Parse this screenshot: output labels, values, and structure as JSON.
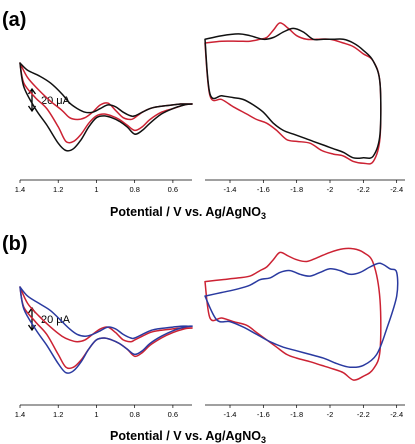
{
  "chart_data": [
    {
      "type": "line",
      "panel_label": "(a)",
      "xlabel": "Potential / V vs. Ag/AgNO",
      "xlabel_sub": "3",
      "scale_bar_label": "20 μA",
      "x_reversed": true,
      "segments": [
        {
          "xlim": [
            1.4,
            0.5
          ],
          "ticks": [
            "1.4",
            "1.2",
            "1",
            "0.8",
            "0.6"
          ],
          "tick_values": [
            1.4,
            1.2,
            1.0,
            0.8,
            0.6
          ]
        },
        {
          "xlim": [
            -1.25,
            -2.45
          ],
          "ticks": [
            "-1.4",
            "-1.6",
            "-1.8",
            "-2",
            "-2.2",
            "-2.4"
          ],
          "tick_values": [
            -1.4,
            -1.6,
            -1.8,
            -2.0,
            -2.2,
            -2.4
          ]
        }
      ],
      "ylim": [
        -45,
        45
      ],
      "series": [
        {
          "color": "#cc2233",
          "loops": [
            {
              "segment": 0,
              "x": [
                1.4,
                1.36,
                1.3,
                1.24,
                1.18,
                1.14,
                1.1,
                1.06,
                1.02,
                0.98,
                0.94,
                0.9,
                0.86,
                0.82,
                0.8,
                0.76,
                0.72,
                0.68,
                0.64,
                0.6,
                0.56,
                0.52,
                0.5,
                0.54,
                0.6,
                0.66,
                0.72,
                0.76,
                0.8,
                0.84,
                0.88,
                0.92,
                0.96,
                1.0,
                1.04,
                1.08,
                1.12,
                1.16,
                1.2,
                1.26,
                1.32,
                1.38,
                1.4
              ],
              "y": [
                17,
                9,
                2,
                -4,
                -9,
                -13,
                -14,
                -13,
                -10,
                -6,
                -5,
                -9,
                -13,
                -14,
                -13,
                -10,
                -8,
                -7,
                -6.5,
                -6,
                -5.5,
                -5.5,
                -5.5,
                -6,
                -8,
                -10,
                -14,
                -18,
                -20,
                -17,
                -14,
                -12,
                -11,
                -12,
                -16,
                -22,
                -26,
                -26,
                -18,
                -8,
                -2,
                6,
                17
              ]
            },
            {
              "segment": 1,
              "x": [
                -1.25,
                -1.35,
                -1.45,
                -1.52,
                -1.58,
                -1.62,
                -1.66,
                -1.7,
                -1.75,
                -1.8,
                -1.86,
                -1.92,
                -2.0,
                -2.08,
                -2.14,
                -2.2,
                -2.26,
                -2.3,
                -2.3,
                -2.26,
                -2.2,
                -2.14,
                -2.08,
                -2.02,
                -1.95,
                -1.88,
                -1.8,
                -1.74,
                -1.68,
                -1.62,
                -1.56,
                -1.5,
                -1.42,
                -1.35,
                -1.28,
                -1.25
              ],
              "y": [
                28,
                29,
                29,
                29,
                30,
                31,
                35,
                39,
                36,
                32,
                30,
                30,
                30,
                28,
                26,
                22,
                18,
                6,
                -24,
                -37,
                -38,
                -37,
                -34,
                -33,
                -31,
                -27,
                -26,
                -25,
                -20,
                -16,
                -14,
                -11,
                -7,
                -3,
                -1,
                28
              ]
            }
          ]
        },
        {
          "color": "#111111",
          "loops": [
            {
              "segment": 0,
              "x": [
                1.4,
                1.36,
                1.3,
                1.24,
                1.18,
                1.14,
                1.1,
                1.06,
                1.02,
                0.98,
                0.94,
                0.9,
                0.86,
                0.82,
                0.8,
                0.76,
                0.72,
                0.68,
                0.64,
                0.6,
                0.56,
                0.52,
                0.5,
                0.54,
                0.6,
                0.66,
                0.72,
                0.76,
                0.8,
                0.84,
                0.88,
                0.92,
                0.96,
                1.0,
                1.04,
                1.08,
                1.12,
                1.16,
                1.2,
                1.26,
                1.32,
                1.38,
                1.4
              ],
              "y": [
                17,
                13,
                10,
                6,
                0,
                -5,
                -8,
                -10,
                -10,
                -8,
                -6,
                -7,
                -10,
                -12,
                -12,
                -10,
                -8,
                -7,
                -6.5,
                -6,
                -5.5,
                -5.5,
                -5.5,
                -6,
                -8,
                -11,
                -16,
                -20,
                -22,
                -18,
                -15,
                -13,
                -12,
                -13,
                -18,
                -25,
                -30,
                -31,
                -27,
                -17,
                -8,
                4,
                17
              ]
            },
            {
              "segment": 1,
              "x": [
                -1.25,
                -1.35,
                -1.45,
                -1.52,
                -1.6,
                -1.66,
                -1.72,
                -1.78,
                -1.84,
                -1.9,
                -1.96,
                -2.02,
                -2.08,
                -2.14,
                -2.2,
                -2.26,
                -2.3,
                -2.3,
                -2.26,
                -2.2,
                -2.14,
                -2.08,
                -2.02,
                -1.96,
                -1.9,
                -1.84,
                -1.78,
                -1.72,
                -1.66,
                -1.6,
                -1.54,
                -1.48,
                -1.42,
                -1.35,
                -1.28,
                -1.25
              ],
              "y": [
                30,
                32,
                33,
                32,
                30,
                31,
                34,
                36,
                34,
                30,
                30,
                30,
                30,
                28,
                24,
                18,
                6,
                -22,
                -34,
                -35,
                -35,
                -32,
                -30,
                -28,
                -26,
                -24,
                -22,
                -20,
                -16,
                -10,
                -6,
                -3,
                -2,
                -1,
                0,
                30
              ]
            }
          ]
        }
      ]
    },
    {
      "type": "line",
      "panel_label": "(b)",
      "xlabel": "Potential / V vs. Ag/AgNO",
      "xlabel_sub": "3",
      "scale_bar_label": "20 μA",
      "x_reversed": true,
      "segments": [
        {
          "xlim": [
            1.4,
            0.5
          ],
          "ticks": [
            "1.4",
            "1.2",
            "1",
            "0.8",
            "0.6"
          ],
          "tick_values": [
            1.4,
            1.2,
            1.0,
            0.8,
            0.6
          ]
        },
        {
          "xlim": [
            -1.25,
            -2.45
          ],
          "ticks": [
            "-1.4",
            "-1.6",
            "-1.8",
            "-2",
            "-2.2",
            "-2.4"
          ],
          "tick_values": [
            -1.4,
            -1.6,
            -1.8,
            -2.0,
            -2.2,
            -2.4
          ]
        }
      ],
      "ylim": [
        -45,
        45
      ],
      "series": [
        {
          "color": "#cc2233",
          "loops": [
            {
              "segment": 0,
              "x": [
                1.4,
                1.36,
                1.3,
                1.24,
                1.18,
                1.14,
                1.1,
                1.06,
                1.02,
                0.98,
                0.94,
                0.9,
                0.86,
                0.82,
                0.8,
                0.76,
                0.72,
                0.68,
                0.64,
                0.6,
                0.56,
                0.52,
                0.5,
                0.54,
                0.6,
                0.66,
                0.72,
                0.76,
                0.8,
                0.84,
                0.88,
                0.92,
                0.96,
                1.0,
                1.04,
                1.08,
                1.12,
                1.16,
                1.2,
                1.26,
                1.32,
                1.38,
                1.4
              ],
              "y": [
                17,
                8,
                1,
                -5,
                -10,
                -12,
                -13,
                -12,
                -9,
                -6,
                -5,
                -8,
                -12,
                -13,
                -12,
                -10,
                -8,
                -7,
                -6.5,
                -6,
                -5.5,
                -5.5,
                -5.5,
                -6,
                -8,
                -11,
                -15,
                -19,
                -21,
                -17,
                -14,
                -12,
                -11,
                -12,
                -17,
                -23,
                -27,
                -27,
                -20,
                -9,
                -2,
                6,
                17
              ]
            },
            {
              "segment": 1,
              "x": [
                -1.25,
                -1.35,
                -1.45,
                -1.52,
                -1.58,
                -1.62,
                -1.66,
                -1.7,
                -1.75,
                -1.8,
                -1.86,
                -1.92,
                -2.0,
                -2.08,
                -2.14,
                -2.2,
                -2.26,
                -2.3,
                -2.3,
                -2.26,
                -2.2,
                -2.14,
                -2.08,
                -2.02,
                -1.95,
                -1.88,
                -1.8,
                -1.74,
                -1.68,
                -1.62,
                -1.56,
                -1.5,
                -1.42,
                -1.35,
                -1.28,
                -1.25
              ],
              "y": [
                20,
                21,
                22,
                23,
                26,
                28,
                32,
                36,
                34,
                32,
                31,
                33,
                36,
                38,
                38,
                36,
                30,
                10,
                -18,
                -28,
                -32,
                -34,
                -30,
                -28,
                -26,
                -24,
                -22,
                -20,
                -16,
                -12,
                -8,
                -4,
                -2,
                0,
                0,
                20
              ]
            }
          ]
        },
        {
          "color": "#2a3aa0",
          "loops": [
            {
              "segment": 0,
              "x": [
                1.4,
                1.36,
                1.3,
                1.24,
                1.18,
                1.14,
                1.1,
                1.06,
                1.02,
                0.98,
                0.94,
                0.9,
                0.86,
                0.82,
                0.8,
                0.76,
                0.72,
                0.68,
                0.64,
                0.6,
                0.56,
                0.52,
                0.5,
                0.54,
                0.6,
                0.66,
                0.72,
                0.76,
                0.8,
                0.84,
                0.88,
                0.92,
                0.96,
                1.0,
                1.04,
                1.08,
                1.12,
                1.16,
                1.2,
                1.26,
                1.32,
                1.38,
                1.4
              ],
              "y": [
                17,
                12,
                8,
                4,
                -2,
                -6,
                -9,
                -10,
                -9,
                -7,
                -5,
                -6,
                -9,
                -11,
                -11,
                -9,
                -7,
                -6,
                -5.5,
                -5,
                -4.5,
                -4.5,
                -4.5,
                -5,
                -7,
                -10,
                -14,
                -18,
                -20,
                -17,
                -14,
                -12,
                -11,
                -12,
                -17,
                -24,
                -29,
                -30,
                -25,
                -15,
                -6,
                5,
                17
              ]
            },
            {
              "segment": 1,
              "x": [
                -1.25,
                -1.35,
                -1.45,
                -1.52,
                -1.58,
                -1.64,
                -1.7,
                -1.76,
                -1.82,
                -1.88,
                -1.94,
                -2.0,
                -2.06,
                -2.12,
                -2.18,
                -2.24,
                -2.3,
                -2.36,
                -2.4,
                -2.4,
                -2.34,
                -2.28,
                -2.2,
                -2.12,
                -2.04,
                -1.96,
                -1.88,
                -1.8,
                -1.72,
                -1.64,
                -1.56,
                -1.48,
                -1.4,
                -1.32,
                -1.25
              ],
              "y": [
                12,
                14,
                16,
                18,
                21,
                22,
                25,
                26,
                24,
                23,
                25,
                27,
                26,
                24,
                25,
                28,
                30,
                27,
                25,
                12,
                -6,
                -20,
                -26,
                -27,
                -25,
                -22,
                -20,
                -18,
                -16,
                -13,
                -9,
                -5,
                -2,
                -1,
                12
              ]
            }
          ]
        }
      ]
    }
  ]
}
